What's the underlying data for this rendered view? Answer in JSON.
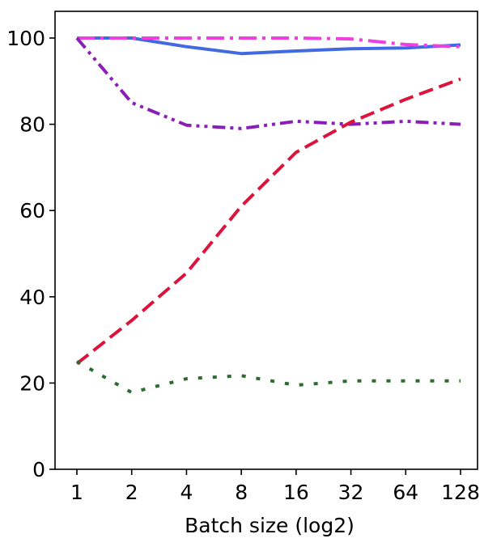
{
  "chart_data": {
    "type": "line",
    "title": "",
    "xlabel": "Batch size (log2)",
    "ylabel": "",
    "x_scale": "log2",
    "categories": [
      "1",
      "2",
      "4",
      "8",
      "16",
      "32",
      "64",
      "128"
    ],
    "x": [
      1,
      2,
      4,
      8,
      16,
      32,
      64,
      128
    ],
    "ylim": [
      0,
      100
    ],
    "yticks": [
      0,
      20,
      40,
      60,
      80,
      100
    ],
    "grid": false,
    "series": [
      {
        "color": "#4169E1",
        "line_style": "solid",
        "values": [
          100,
          100,
          98,
          96.4,
          97,
          97.5,
          97.7,
          98.4
        ]
      },
      {
        "color": "#EE40E0",
        "line_style": "dashdot",
        "values": [
          100,
          100,
          100,
          100,
          100,
          99.8,
          98.5,
          98
        ]
      },
      {
        "color": "#8A1FB8",
        "line_style": "dashdotdot",
        "values": [
          100,
          85,
          79.8,
          79,
          80.7,
          80,
          80.7,
          80
        ]
      },
      {
        "color": "#DC143C",
        "line_style": "dashed",
        "values": [
          24.5,
          34.5,
          45.5,
          61,
          73.5,
          80.5,
          85.8,
          90.5
        ]
      },
      {
        "color": "#2E6B2E",
        "line_style": "dotted",
        "values": [
          25,
          17.8,
          21,
          21.7,
          19.5,
          20.5,
          20.5,
          20.5
        ]
      }
    ]
  }
}
